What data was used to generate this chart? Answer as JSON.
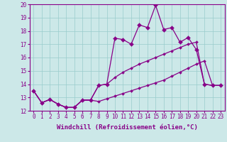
{
  "xlabel": "Windchill (Refroidissement éolien,°C)",
  "bg_color": "#cce8e8",
  "line_color": "#880088",
  "grid_color": "#99cccc",
  "ylim": [
    12,
    20
  ],
  "xlim": [
    0,
    23
  ],
  "yticks": [
    12,
    13,
    14,
    15,
    16,
    17,
    18,
    19,
    20
  ],
  "xticks": [
    0,
    1,
    2,
    3,
    4,
    5,
    6,
    7,
    8,
    9,
    10,
    11,
    12,
    13,
    14,
    15,
    16,
    17,
    18,
    19,
    20,
    21,
    22,
    23
  ],
  "line_wavy_x": [
    0,
    1,
    2,
    3,
    4,
    5,
    6,
    7,
    8,
    9,
    10,
    11,
    12,
    13,
    14,
    15,
    16,
    17,
    18,
    19,
    20,
    21,
    22,
    23
  ],
  "line_wavy_y": [
    13.5,
    12.6,
    12.85,
    12.5,
    12.25,
    12.25,
    12.8,
    12.8,
    13.9,
    14.0,
    17.45,
    17.35,
    17.0,
    18.45,
    18.25,
    19.92,
    18.1,
    18.25,
    17.15,
    17.5,
    16.6,
    14.0,
    13.9,
    13.9
  ],
  "line_upper_x": [
    0,
    1,
    2,
    3,
    4,
    5,
    6,
    7,
    8,
    9,
    10,
    11,
    12,
    13,
    14,
    15,
    16,
    17,
    18,
    19,
    20,
    21,
    22,
    23
  ],
  "line_upper_y": [
    13.5,
    12.6,
    12.85,
    12.5,
    12.25,
    12.25,
    12.8,
    12.8,
    13.9,
    14.0,
    14.5,
    14.9,
    15.2,
    15.5,
    15.75,
    16.0,
    16.25,
    16.5,
    16.75,
    17.0,
    17.15,
    14.0,
    13.9,
    13.9
  ],
  "line_lower_x": [
    0,
    1,
    2,
    3,
    4,
    5,
    6,
    7,
    8,
    9,
    10,
    11,
    12,
    13,
    14,
    15,
    16,
    17,
    18,
    19,
    20,
    21,
    22,
    23
  ],
  "line_lower_y": [
    13.5,
    12.6,
    12.85,
    12.5,
    12.25,
    12.25,
    12.8,
    12.8,
    12.7,
    12.9,
    13.1,
    13.3,
    13.5,
    13.7,
    13.9,
    14.1,
    14.3,
    14.6,
    14.9,
    15.2,
    15.5,
    15.75,
    13.9,
    13.9
  ],
  "marker_size": 3,
  "linewidth": 0.9,
  "fontsize_ticks": 5.5,
  "fontsize_xlabel": 6.5
}
